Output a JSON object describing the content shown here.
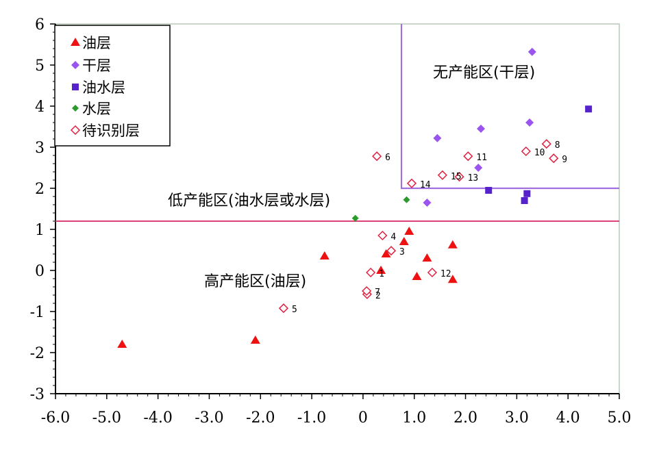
{
  "chart_data": {
    "type": "scatter",
    "xlim": [
      -6,
      5
    ],
    "ylim": [
      -3,
      6
    ],
    "x_ticks": [
      "-6.0",
      "-5.0",
      "-4.0",
      "-3.0",
      "-2.0",
      "-1.0",
      "0",
      "1.0",
      "2.0",
      "3.0",
      "4.0",
      "5.0"
    ],
    "y_ticks": [
      "-3",
      "-2",
      "-1",
      "0",
      "1",
      "2",
      "3",
      "4",
      "5",
      "6"
    ],
    "grid": false,
    "legend_position": "top-left",
    "legend": [
      "油层",
      "干层",
      "油水层",
      "水层",
      "待识别层"
    ],
    "zone_labels": [
      "无产能区(干层)",
      "低产能区(油水层或水层)",
      "高产能区(油层)"
    ],
    "boundaries": {
      "horizontal_y": 1.2,
      "dry_zone_corner": [
        0.75,
        2.0
      ],
      "boundary_colors": {
        "horizontal": "#e0407a",
        "dry_zone": "#a070e0"
      }
    },
    "series": [
      {
        "name": "油层",
        "marker": "triangle",
        "color": "#ee1111",
        "points": [
          [
            -4.7,
            -1.8
          ],
          [
            -2.1,
            -1.7
          ],
          [
            -0.75,
            0.35
          ],
          [
            0.35,
            0
          ],
          [
            0.45,
            0.4
          ],
          [
            0.8,
            0.7
          ],
          [
            0.9,
            0.95
          ],
          [
            1.05,
            -0.15
          ],
          [
            1.25,
            0.3
          ],
          [
            1.75,
            0.62
          ],
          [
            1.75,
            -0.22
          ]
        ]
      },
      {
        "name": "干层",
        "marker": "diamond",
        "color": "#9955ee",
        "points": [
          [
            1.45,
            3.22
          ],
          [
            1.25,
            1.65
          ],
          [
            2.25,
            2.5
          ],
          [
            2.3,
            3.45
          ],
          [
            3.25,
            3.6
          ],
          [
            3.3,
            5.32
          ]
        ]
      },
      {
        "name": "油水层",
        "marker": "square",
        "color": "#5522cc",
        "points": [
          [
            2.45,
            1.95
          ],
          [
            3.15,
            1.7
          ],
          [
            3.2,
            1.87
          ],
          [
            4.4,
            3.93
          ]
        ]
      },
      {
        "name": "水层",
        "marker": "diamond-small",
        "color": "#2a9a2a",
        "points": [
          [
            -0.15,
            1.27
          ],
          [
            0.85,
            1.72
          ]
        ]
      },
      {
        "name": "待识别层",
        "marker": "open-diamond",
        "color": "#e02040",
        "points": [
          {
            "x": 0.15,
            "y": -0.05,
            "label": "1"
          },
          {
            "x": 0.08,
            "y": -0.58,
            "label": "2"
          },
          {
            "x": 0.55,
            "y": 0.48,
            "label": "3"
          },
          {
            "x": 0.38,
            "y": 0.85,
            "label": "4"
          },
          {
            "x": -1.55,
            "y": -0.92,
            "label": "5"
          },
          {
            "x": 0.27,
            "y": 2.78,
            "label": "6"
          },
          {
            "x": 0.07,
            "y": -0.5,
            "label": "7"
          },
          {
            "x": 3.58,
            "y": 3.08,
            "label": "8"
          },
          {
            "x": 3.72,
            "y": 2.73,
            "label": "9"
          },
          {
            "x": 3.18,
            "y": 2.9,
            "label": "10"
          },
          {
            "x": 2.05,
            "y": 2.78,
            "label": "11"
          },
          {
            "x": 1.35,
            "y": -0.05,
            "label": "12"
          },
          {
            "x": 1.88,
            "y": 2.28,
            "label": "13"
          },
          {
            "x": 0.95,
            "y": 2.12,
            "label": "14"
          },
          {
            "x": 1.55,
            "y": 2.32,
            "label": "15"
          }
        ]
      }
    ]
  }
}
